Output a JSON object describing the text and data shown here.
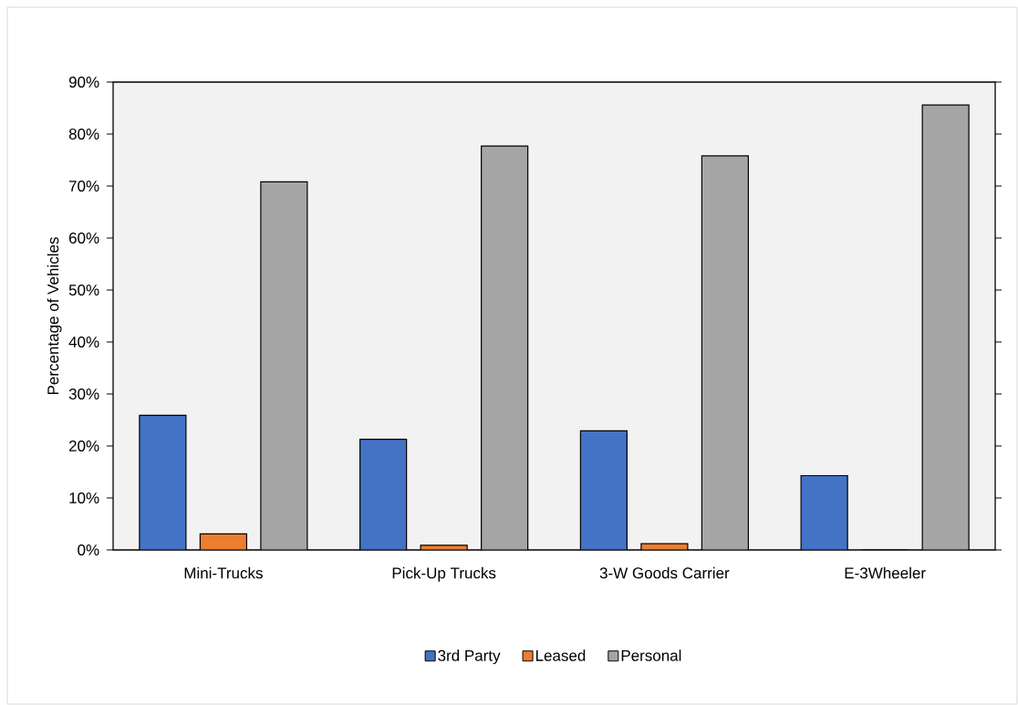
{
  "chart_data": {
    "type": "bar",
    "ylabel": "Percentage of Vehicles",
    "categories": [
      "Mini-Trucks",
      "Pick-Up Trucks",
      "3-W Goods Carrier",
      "E-3Wheeler"
    ],
    "series": [
      {
        "name": "3rd Party",
        "color": "#4472c4",
        "values": [
          25.9,
          21.3,
          22.9,
          14.3
        ]
      },
      {
        "name": "Leased",
        "color": "#ed7d31",
        "values": [
          3.1,
          0.9,
          1.2,
          0
        ]
      },
      {
        "name": "Personal",
        "color": "#a5a5a5",
        "values": [
          70.8,
          77.7,
          75.8,
          85.6
        ]
      }
    ],
    "ylim": [
      0,
      90
    ],
    "yticks": [
      {
        "value": 0,
        "label": "0%"
      },
      {
        "value": 10,
        "label": "10%"
      },
      {
        "value": 20,
        "label": "20%"
      },
      {
        "value": 30,
        "label": "30%"
      },
      {
        "value": 40,
        "label": "40%"
      },
      {
        "value": 50,
        "label": "50%"
      },
      {
        "value": 60,
        "label": "60%"
      },
      {
        "value": 70,
        "label": "70%"
      },
      {
        "value": 80,
        "label": "80%"
      },
      {
        "value": 90,
        "label": "90%"
      }
    ],
    "legend": "bottom"
  }
}
